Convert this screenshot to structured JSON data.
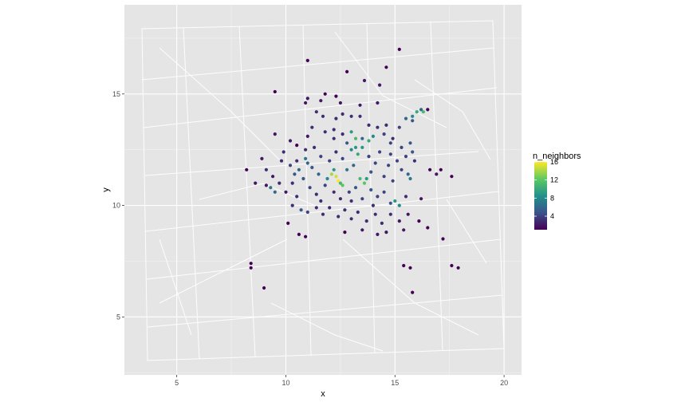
{
  "chart_data": {
    "type": "scatter",
    "xlabel": "x",
    "ylabel": "y",
    "xlim": [
      2.6,
      20.8
    ],
    "ylim": [
      2.4,
      19.0
    ],
    "x_ticks": [
      5,
      10,
      15,
      20
    ],
    "y_ticks": [
      5,
      10,
      15
    ],
    "x_tick_labels": [
      "5",
      "10",
      "15",
      "20"
    ],
    "y_tick_labels": [
      "5",
      "10",
      "15"
    ],
    "grid": true,
    "background": "#e5e5e5",
    "legend": {
      "title": "n_neighbors",
      "position": "right",
      "range": [
        1,
        16
      ],
      "ticks": [
        4,
        8,
        12,
        16
      ],
      "tick_labels": [
        "4",
        "8",
        "12",
        "16"
      ],
      "colors": [
        "#440154",
        "#3b528b",
        "#21918c",
        "#5ec962",
        "#fde725"
      ]
    },
    "points": [
      [
        15.2,
        17.0,
        1
      ],
      [
        11.0,
        16.5,
        1
      ],
      [
        12.8,
        16.0,
        1
      ],
      [
        14.6,
        16.2,
        1
      ],
      [
        9.5,
        15.1,
        1
      ],
      [
        11.8,
        15.0,
        1
      ],
      [
        12.3,
        14.9,
        1
      ],
      [
        13.6,
        15.6,
        2
      ],
      [
        14.3,
        15.4,
        2
      ],
      [
        10.9,
        14.6,
        2
      ],
      [
        11.0,
        14.8,
        2
      ],
      [
        11.6,
        14.7,
        2
      ],
      [
        12.5,
        14.6,
        2
      ],
      [
        13.4,
        14.5,
        2
      ],
      [
        14.2,
        14.6,
        2
      ],
      [
        16.5,
        14.3,
        1
      ],
      [
        16.2,
        14.3,
        6
      ],
      [
        16.0,
        14.2,
        10
      ],
      [
        15.8,
        14.0,
        8
      ],
      [
        15.5,
        13.9,
        6
      ],
      [
        15.2,
        13.5,
        4
      ],
      [
        15.8,
        13.8,
        5
      ],
      [
        16.3,
        14.2,
        11
      ],
      [
        11.4,
        14.2,
        3
      ],
      [
        11.7,
        14.0,
        3
      ],
      [
        12.3,
        13.9,
        3
      ],
      [
        12.6,
        14.1,
        3
      ],
      [
        13.0,
        14.0,
        3
      ],
      [
        13.4,
        14.0,
        3
      ],
      [
        13.8,
        13.6,
        3
      ],
      [
        14.2,
        13.5,
        3
      ],
      [
        14.6,
        13.6,
        3
      ],
      [
        11.2,
        13.5,
        3
      ],
      [
        11.8,
        13.3,
        3
      ],
      [
        12.2,
        13.4,
        3
      ],
      [
        12.6,
        13.2,
        3
      ],
      [
        13.2,
        13.0,
        11
      ],
      [
        13.0,
        13.3,
        9
      ],
      [
        13.8,
        12.9,
        10
      ],
      [
        14.0,
        13.1,
        8
      ],
      [
        14.5,
        13.2,
        4
      ],
      [
        14.8,
        12.8,
        4
      ],
      [
        15.3,
        12.6,
        4
      ],
      [
        15.7,
        12.8,
        5
      ],
      [
        15.8,
        12.4,
        5
      ],
      [
        15.6,
        11.4,
        6
      ],
      [
        9.5,
        13.2,
        2
      ],
      [
        10.2,
        12.9,
        2
      ],
      [
        10.5,
        12.7,
        1
      ],
      [
        10.9,
        12.5,
        3
      ],
      [
        11.3,
        12.6,
        3
      ],
      [
        11.6,
        12.2,
        4
      ],
      [
        12.3,
        12.4,
        3
      ],
      [
        12.6,
        12.1,
        4
      ],
      [
        13.0,
        12.5,
        8
      ],
      [
        13.3,
        12.3,
        10
      ],
      [
        13.5,
        12.6,
        9
      ],
      [
        13.8,
        12.2,
        4
      ],
      [
        14.3,
        12.4,
        4
      ],
      [
        14.8,
        12.3,
        4
      ],
      [
        15.1,
        12.0,
        4
      ],
      [
        8.9,
        12.1,
        2
      ],
      [
        9.1,
        11.6,
        3
      ],
      [
        9.4,
        11.3,
        2
      ],
      [
        9.7,
        11.0,
        3
      ],
      [
        9.9,
        12.4,
        3
      ],
      [
        10.2,
        11.8,
        4
      ],
      [
        10.6,
        11.6,
        6
      ],
      [
        10.9,
        12.1,
        7
      ],
      [
        11.2,
        11.7,
        5
      ],
      [
        11.5,
        11.4,
        6
      ],
      [
        11.9,
        11.2,
        8
      ],
      [
        12.2,
        11.6,
        9
      ],
      [
        12.4,
        11.1,
        16
      ],
      [
        12.6,
        10.9,
        12
      ],
      [
        12.8,
        11.6,
        7
      ],
      [
        13.1,
        11.8,
        6
      ],
      [
        13.4,
        11.2,
        11
      ],
      [
        13.6,
        11.0,
        12
      ],
      [
        13.9,
        11.5,
        5
      ],
      [
        14.1,
        11.9,
        4
      ],
      [
        14.5,
        11.3,
        4
      ],
      [
        14.7,
        11.8,
        4
      ],
      [
        14.9,
        11.1,
        4
      ],
      [
        15.3,
        11.6,
        4
      ],
      [
        15.7,
        11.2,
        7
      ],
      [
        8.2,
        11.6,
        1
      ],
      [
        8.6,
        11.0,
        2
      ],
      [
        9.1,
        10.9,
        2
      ],
      [
        9.3,
        10.8,
        7
      ],
      [
        9.5,
        10.6,
        6
      ],
      [
        10.0,
        10.6,
        2
      ],
      [
        10.3,
        11.0,
        3
      ],
      [
        10.5,
        10.4,
        3
      ],
      [
        10.8,
        11.2,
        5
      ],
      [
        11.1,
        10.8,
        4
      ],
      [
        11.4,
        10.5,
        3
      ],
      [
        11.8,
        10.9,
        4
      ],
      [
        12.2,
        10.6,
        3
      ],
      [
        12.5,
        10.3,
        3
      ],
      [
        12.9,
        10.6,
        4
      ],
      [
        13.2,
        10.8,
        5
      ],
      [
        13.5,
        10.3,
        4
      ],
      [
        13.9,
        10.7,
        5
      ],
      [
        14.2,
        10.4,
        4
      ],
      [
        14.5,
        10.6,
        4
      ],
      [
        15.0,
        10.2,
        9
      ],
      [
        15.2,
        10.0,
        8
      ],
      [
        14.8,
        10.1,
        5
      ],
      [
        15.5,
        10.4,
        3
      ],
      [
        16.2,
        10.3,
        2
      ],
      [
        16.6,
        11.6,
        1
      ],
      [
        17.1,
        11.6,
        1
      ],
      [
        17.6,
        11.3,
        1
      ],
      [
        16.9,
        11.4,
        2
      ],
      [
        10.3,
        10.0,
        3
      ],
      [
        10.7,
        9.8,
        5
      ],
      [
        11.0,
        9.7,
        4
      ],
      [
        11.4,
        9.9,
        3
      ],
      [
        11.7,
        9.6,
        3
      ],
      [
        12.0,
        9.9,
        3
      ],
      [
        12.4,
        9.5,
        3
      ],
      [
        12.7,
        9.8,
        3
      ],
      [
        13.0,
        9.4,
        3
      ],
      [
        13.3,
        9.7,
        3
      ],
      [
        13.7,
        9.3,
        3
      ],
      [
        14.1,
        9.6,
        3
      ],
      [
        14.4,
        9.2,
        3
      ],
      [
        14.8,
        9.6,
        3
      ],
      [
        15.2,
        9.3,
        2
      ],
      [
        15.6,
        9.6,
        2
      ],
      [
        16.1,
        9.3,
        1
      ],
      [
        16.5,
        9.0,
        1
      ],
      [
        10.1,
        9.2,
        1
      ],
      [
        10.6,
        8.7,
        1
      ],
      [
        10.9,
        8.6,
        1
      ],
      [
        12.7,
        8.8,
        1
      ],
      [
        13.5,
        8.9,
        2
      ],
      [
        14.2,
        8.7,
        2
      ],
      [
        14.6,
        8.8,
        2
      ],
      [
        15.4,
        8.9,
        2
      ],
      [
        17.2,
        8.5,
        1
      ],
      [
        8.4,
        7.4,
        1
      ],
      [
        8.4,
        7.2,
        1
      ],
      [
        9.0,
        6.3,
        1
      ],
      [
        15.4,
        7.3,
        1
      ],
      [
        15.7,
        7.2,
        1
      ],
      [
        15.8,
        6.1,
        1
      ],
      [
        17.6,
        7.3,
        1
      ],
      [
        17.9,
        7.2,
        1
      ],
      [
        10.5,
        12.0,
        3
      ],
      [
        11.0,
        11.9,
        6
      ],
      [
        12.0,
        12.0,
        4
      ],
      [
        13.0,
        10.2,
        3
      ],
      [
        14.0,
        10.0,
        3
      ],
      [
        12.1,
        11.4,
        14
      ],
      [
        12.3,
        11.3,
        15
      ],
      [
        12.5,
        11.0,
        11
      ],
      [
        13.7,
        11.2,
        9
      ],
      [
        13.5,
        13.0,
        6
      ],
      [
        14.9,
        13.0,
        3
      ],
      [
        15.9,
        12.0,
        3
      ],
      [
        15.5,
        12.2,
        4
      ],
      [
        10.4,
        11.4,
        5
      ],
      [
        11.6,
        10.2,
        3
      ],
      [
        12.2,
        13.0,
        3
      ],
      [
        11.0,
        13.1,
        2
      ],
      [
        12.8,
        12.8,
        5
      ],
      [
        13.2,
        12.6,
        9
      ],
      [
        9.8,
        12.0,
        3
      ]
    ]
  }
}
